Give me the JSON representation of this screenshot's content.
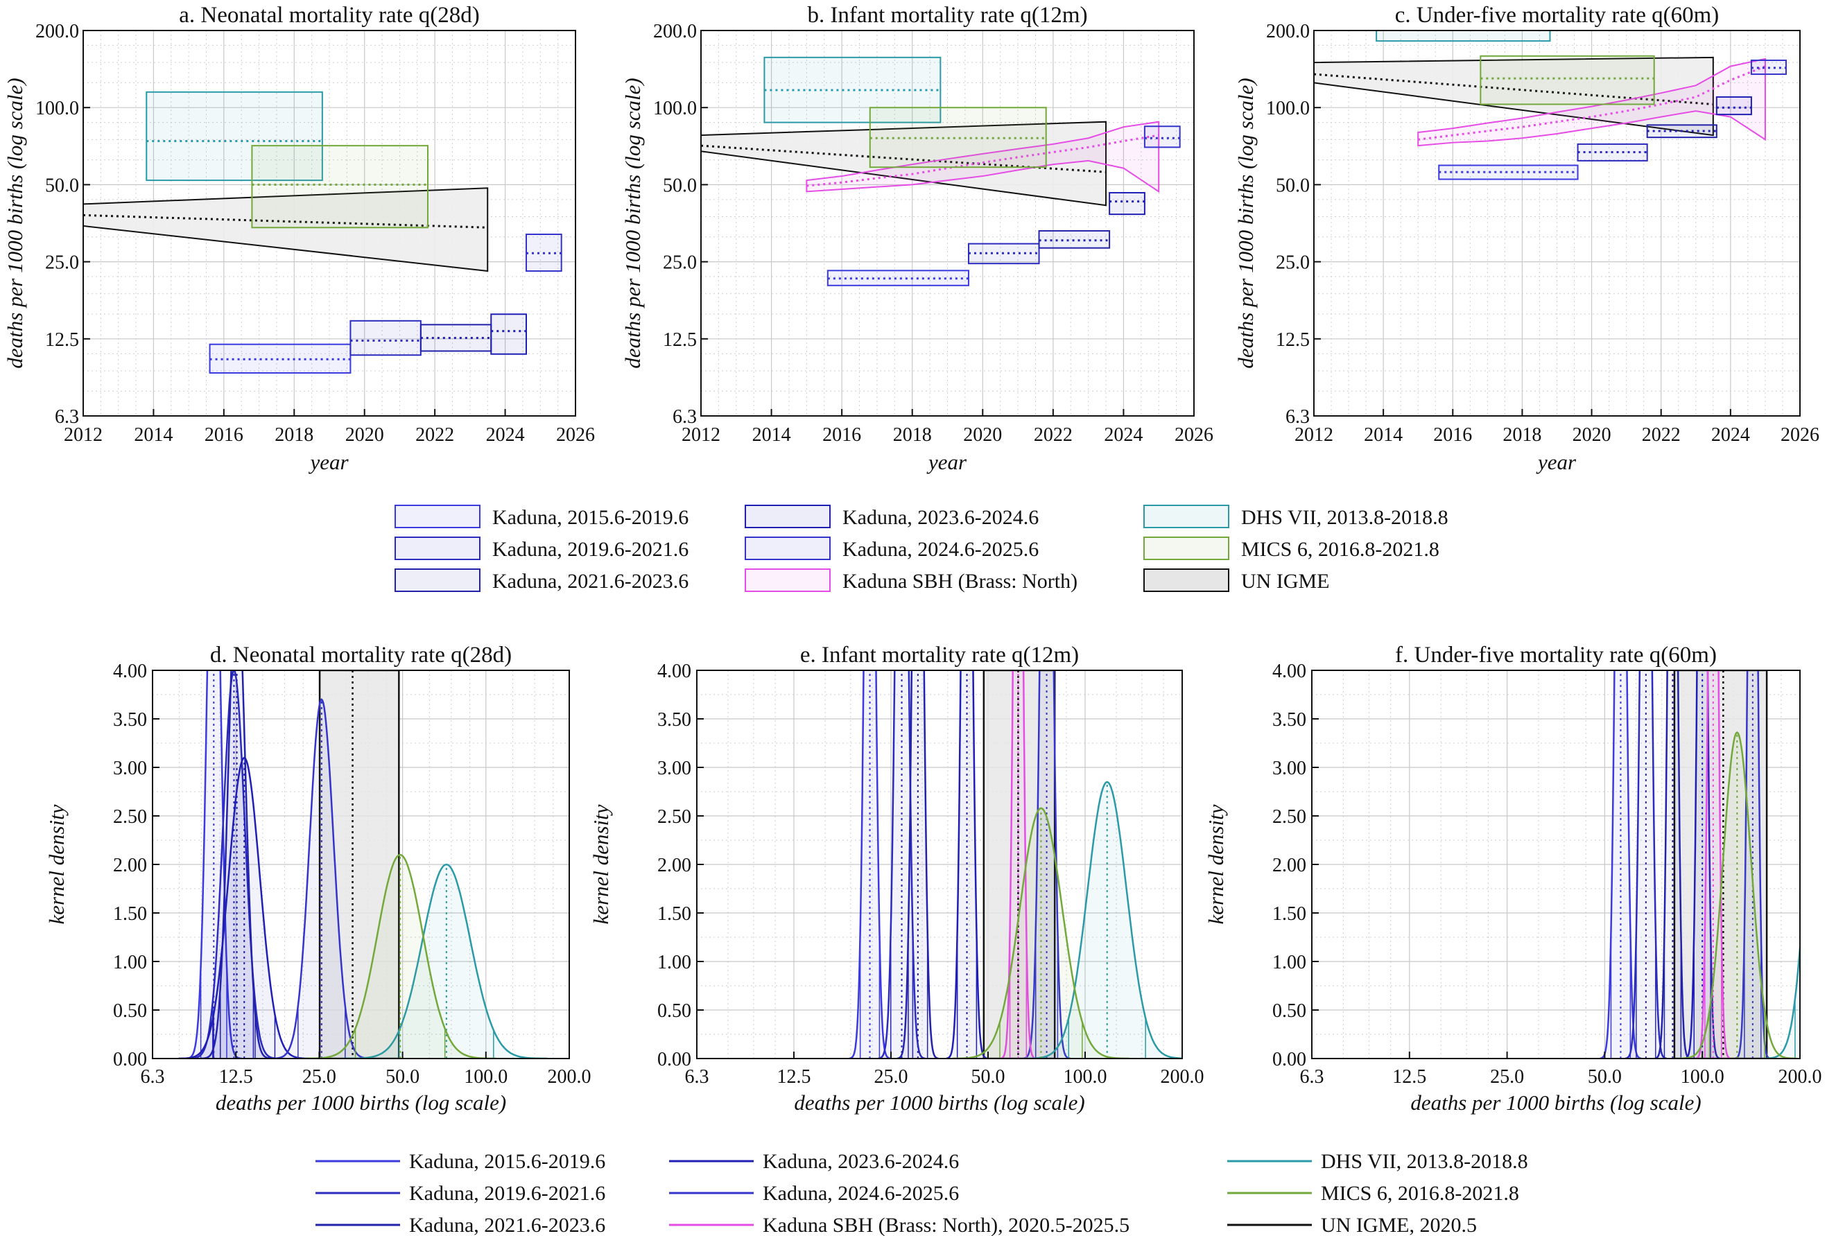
{
  "chart_data": [
    {
      "type": "area",
      "title": "a. Neonatal mortality rate q(28d)",
      "xlabel": "year",
      "ylabel": "deaths per 1000 births (log scale)",
      "xlim": [
        2012,
        2026
      ],
      "ylim": [
        6.25,
        200
      ],
      "yscale": "log",
      "grid": true,
      "x_ticks": [
        "2012",
        "2014",
        "2016",
        "2018",
        "2020",
        "2022",
        "2024",
        "2026"
      ],
      "y_ticks": [
        "6.3",
        "12.5",
        "25.0",
        "50.0",
        "100.0",
        "200.0"
      ],
      "estimates": [
        {
          "name": "Kaduna, 2015.6-2019.6",
          "x0": 2015.6,
          "x1": 2019.6,
          "y": 10.4,
          "lo": 9.2,
          "hi": 11.9
        },
        {
          "name": "Kaduna, 2019.6-2021.6",
          "x0": 2019.6,
          "x1": 2021.6,
          "y": 12.3,
          "lo": 10.8,
          "hi": 14.7
        },
        {
          "name": "Kaduna, 2021.6-2023.6",
          "x0": 2021.6,
          "x1": 2023.6,
          "y": 12.6,
          "lo": 11.2,
          "hi": 14.2
        },
        {
          "name": "Kaduna, 2023.6-2024.6",
          "x0": 2023.6,
          "x1": 2024.6,
          "y": 13.4,
          "lo": 10.9,
          "hi": 15.6
        },
        {
          "name": "Kaduna, 2024.6-2025.6",
          "x0": 2024.6,
          "x1": 2025.6,
          "y": 27,
          "lo": 23,
          "hi": 32
        },
        {
          "name": "DHS VII, 2013.8-2018.8",
          "x0": 2013.8,
          "x1": 2018.8,
          "y": 74,
          "lo": 52,
          "hi": 115
        },
        {
          "name": "MICS 6, 2016.8-2021.8",
          "x0": 2016.8,
          "x1": 2021.8,
          "y": 50,
          "lo": 34,
          "hi": 71
        }
      ],
      "unigme": {
        "x": [
          2012,
          2023.5
        ],
        "mid": [
          38,
          34
        ],
        "lo": [
          34.5,
          23
        ],
        "hi": [
          42,
          48.5
        ]
      }
    },
    {
      "type": "area",
      "title": "b. Infant mortality rate q(12m)",
      "xlabel": "year",
      "ylabel": "deaths per 1000 births (log scale)",
      "xlim": [
        2012,
        2026
      ],
      "ylim": [
        6.25,
        200
      ],
      "yscale": "log",
      "grid": true,
      "x_ticks": [
        "2012",
        "2014",
        "2016",
        "2018",
        "2020",
        "2022",
        "2024",
        "2026"
      ],
      "y_ticks": [
        "6.3",
        "12.5",
        "25.0",
        "50.0",
        "100.0",
        "200.0"
      ],
      "estimates": [
        {
          "name": "Kaduna, 2015.6-2019.6",
          "x0": 2015.6,
          "x1": 2019.6,
          "y": 21.5,
          "lo": 20.2,
          "hi": 23.1
        },
        {
          "name": "Kaduna, 2019.6-2021.6",
          "x0": 2019.6,
          "x1": 2021.6,
          "y": 27,
          "lo": 24.6,
          "hi": 29.4
        },
        {
          "name": "Kaduna, 2021.6-2023.6",
          "x0": 2021.6,
          "x1": 2023.6,
          "y": 30.3,
          "lo": 28.3,
          "hi": 33
        },
        {
          "name": "Kaduna, 2023.6-2024.6",
          "x0": 2023.6,
          "x1": 2024.6,
          "y": 43,
          "lo": 38.3,
          "hi": 46.5
        },
        {
          "name": "Kaduna, 2024.6-2025.6",
          "x0": 2024.6,
          "x1": 2025.6,
          "y": 76,
          "lo": 70,
          "hi": 84.5
        },
        {
          "name": "DHS VII, 2013.8-2018.8",
          "x0": 2013.8,
          "x1": 2018.8,
          "y": 117,
          "lo": 87.5,
          "hi": 157
        },
        {
          "name": "MICS 6, 2016.8-2021.8",
          "x0": 2016.8,
          "x1": 2021.8,
          "y": 76,
          "lo": 58.5,
          "hi": 100
        }
      ],
      "sbh": {
        "x": [
          2015,
          2016,
          2017,
          2018,
          2019,
          2020,
          2021,
          2022,
          2023,
          2024,
          2025
        ],
        "mid": [
          49.5,
          51,
          53,
          55,
          58,
          61,
          64,
          67,
          70,
          74,
          78
        ],
        "lo": [
          47,
          48,
          49,
          50,
          52,
          54,
          57,
          60,
          62,
          58,
          47
        ],
        "hi": [
          52,
          54,
          57,
          60,
          63,
          66,
          69,
          72,
          76,
          84,
          88
        ]
      },
      "unigme": {
        "x": [
          2012,
          2023.5
        ],
        "mid": [
          71,
          56
        ],
        "lo": [
          67.5,
          41.5
        ],
        "hi": [
          78,
          88
        ]
      }
    },
    {
      "type": "area",
      "title": "c. Under-five mortality rate q(60m)",
      "xlabel": "year",
      "ylabel": "deaths per 1000 births (log scale)",
      "xlim": [
        2012,
        2026
      ],
      "ylim": [
        6.25,
        200
      ],
      "yscale": "log",
      "grid": true,
      "x_ticks": [
        "2012",
        "2014",
        "2016",
        "2018",
        "2020",
        "2022",
        "2024",
        "2026"
      ],
      "y_ticks": [
        "6.3",
        "12.5",
        "25.0",
        "50.0",
        "100.0",
        "200.0"
      ],
      "estimates": [
        {
          "name": "Kaduna, 2015.6-2019.6",
          "x0": 2015.6,
          "x1": 2019.6,
          "y": 56,
          "lo": 52.5,
          "hi": 59.5
        },
        {
          "name": "Kaduna, 2019.6-2021.6",
          "x0": 2019.6,
          "x1": 2021.6,
          "y": 67,
          "lo": 62,
          "hi": 72
        },
        {
          "name": "Kaduna, 2021.6-2023.6",
          "x0": 2021.6,
          "x1": 2023.6,
          "y": 81,
          "lo": 76.5,
          "hi": 85.5
        },
        {
          "name": "Kaduna, 2023.6-2024.6",
          "x0": 2023.6,
          "x1": 2024.6,
          "y": 100,
          "lo": 94,
          "hi": 110
        },
        {
          "name": "Kaduna, 2024.6-2025.6",
          "x0": 2024.6,
          "x1": 2025.6,
          "y": 143,
          "lo": 135,
          "hi": 153
        },
        {
          "name": "DHS VII, 2013.8-2018.8",
          "x0": 2013.8,
          "x1": 2018.8,
          "y": 230,
          "lo": 182,
          "hi": 290
        },
        {
          "name": "MICS 6, 2016.8-2021.8",
          "x0": 2016.8,
          "x1": 2021.8,
          "y": 130,
          "lo": 103,
          "hi": 159
        }
      ],
      "sbh": {
        "x": [
          2015,
          2016,
          2017,
          2018,
          2019,
          2020,
          2021,
          2022,
          2023,
          2024,
          2025
        ],
        "mid": [
          75,
          78,
          81,
          84,
          88,
          92,
          97,
          103,
          110,
          128,
          145
        ],
        "lo": [
          71,
          73,
          74,
          76,
          79,
          83,
          87,
          92,
          97,
          92,
          75
        ],
        "hi": [
          80,
          83,
          87,
          91,
          96,
          101,
          107,
          114,
          122,
          145,
          155
        ]
      },
      "unigme": {
        "x": [
          2012,
          2023.5
        ],
        "mid": [
          135,
          103
        ],
        "lo": [
          125,
          78
        ],
        "hi": [
          150,
          157
        ]
      }
    },
    {
      "type": "area",
      "title": "d. Neonatal mortality rate q(28d)",
      "xlabel": "deaths per 1000 births (log scale)",
      "ylabel": "kernel density",
      "xlim": [
        6.25,
        200
      ],
      "xscale": "log",
      "ylim": [
        0,
        4
      ],
      "grid": true,
      "x_ticks": [
        "6.3",
        "12.5",
        "25.0",
        "50.0",
        "100.0",
        "200.0"
      ],
      "y_ticks": [
        "0.00",
        "0.50",
        "1.00",
        "1.50",
        "2.00",
        "2.50",
        "3.00",
        "3.50",
        "4.00"
      ],
      "densities": [
        {
          "name": "Kaduna, 2015.6-2019.6",
          "mu": 10.4,
          "sigma": 0.055,
          "peak": 6.5
        },
        {
          "name": "Kaduna, 2019.6-2021.6",
          "mu": 12.3,
          "sigma": 0.09,
          "peak": 4.0
        },
        {
          "name": "Kaduna, 2021.6-2023.6",
          "mu": 12.6,
          "sigma": 0.07,
          "peak": 5.0
        },
        {
          "name": "Kaduna, 2023.6-2024.6",
          "mu": 13.4,
          "sigma": 0.13,
          "peak": 3.1
        },
        {
          "name": "Kaduna, 2024.6-2025.6",
          "mu": 25.5,
          "sigma": 0.1,
          "peak": 3.7
        },
        {
          "name": "DHS VII, 2013.8-2018.8",
          "mu": 72,
          "sigma": 0.2,
          "peak": 2.0
        },
        {
          "name": "MICS 6, 2016.8-2021.8",
          "mu": 49,
          "sigma": 0.19,
          "peak": 2.1
        }
      ],
      "unigme_band": [
        25.1,
        48.5
      ],
      "unigme_mid": 33
    },
    {
      "type": "area",
      "title": "e. Infant mortality rate q(12m)",
      "xlabel": "deaths per 1000 births (log scale)",
      "ylabel": "kernel density",
      "xlim": [
        6.25,
        200
      ],
      "xscale": "log",
      "ylim": [
        0,
        4
      ],
      "grid": true,
      "x_ticks": [
        "6.3",
        "12.5",
        "25.0",
        "50.0",
        "100.0",
        "200.0"
      ],
      "y_ticks": [
        "0.00",
        "0.50",
        "1.00",
        "1.50",
        "2.00",
        "2.50",
        "3.00",
        "3.50",
        "4.00"
      ],
      "densities": [
        {
          "name": "Kaduna, 2015.6-2019.6",
          "mu": 21.5,
          "sigma": 0.035,
          "peak": 9
        },
        {
          "name": "Kaduna, 2019.6-2021.6",
          "mu": 27,
          "sigma": 0.04,
          "peak": 9
        },
        {
          "name": "Kaduna, 2021.6-2023.6",
          "mu": 30.3,
          "sigma": 0.035,
          "peak": 9
        },
        {
          "name": "Kaduna, 2023.6-2024.6",
          "mu": 43,
          "sigma": 0.035,
          "peak": 9
        },
        {
          "name": "Kaduna, 2024.6-2025.6",
          "mu": 76,
          "sigma": 0.04,
          "peak": 9
        },
        {
          "name": "Kaduna SBH (Brass: North), 2020.5-2025.5",
          "mu": 62,
          "sigma": 0.03,
          "peak": 9
        },
        {
          "name": "DHS VII, 2013.8-2018.8",
          "mu": 117,
          "sigma": 0.14,
          "peak": 2.85
        },
        {
          "name": "MICS 6, 2016.8-2021.8",
          "mu": 73,
          "sigma": 0.15,
          "peak": 2.58
        }
      ],
      "unigme_band": [
        48.5,
        80.5
      ],
      "unigme_mid": 62
    },
    {
      "type": "area",
      "title": "f. Under-five mortality rate q(60m)",
      "xlabel": "deaths per 1000 births (log scale)",
      "ylabel": "kernel density",
      "xlim": [
        6.25,
        200
      ],
      "xscale": "log",
      "ylim": [
        0,
        4
      ],
      "grid": true,
      "x_ticks": [
        "6.3",
        "12.5",
        "25.0",
        "50.0",
        "100.0",
        "200.0"
      ],
      "y_ticks": [
        "0.00",
        "0.50",
        "1.00",
        "1.50",
        "2.00",
        "2.50",
        "3.00",
        "3.50",
        "4.00"
      ],
      "densities": [
        {
          "name": "Kaduna, 2015.6-2019.6",
          "mu": 56,
          "sigma": 0.035,
          "peak": 9
        },
        {
          "name": "Kaduna, 2019.6-2021.6",
          "mu": 67,
          "sigma": 0.035,
          "peak": 9
        },
        {
          "name": "Kaduna, 2021.6-2023.6",
          "mu": 81,
          "sigma": 0.03,
          "peak": 9
        },
        {
          "name": "Kaduna, 2023.6-2024.6",
          "mu": 100,
          "sigma": 0.03,
          "peak": 9
        },
        {
          "name": "Kaduna, 2024.6-2025.6",
          "mu": 143,
          "sigma": 0.03,
          "peak": 9
        },
        {
          "name": "Kaduna SBH (Brass: North), 2020.5-2025.5",
          "mu": 108,
          "sigma": 0.03,
          "peak": 9
        },
        {
          "name": "DHS VII, 2013.8-2018.8",
          "mu": 235,
          "sigma": 0.1,
          "peak": 4.2
        },
        {
          "name": "MICS 6, 2016.8-2021.8",
          "mu": 128,
          "sigma": 0.1,
          "peak": 3.36
        }
      ],
      "unigme_band": [
        82,
        158
      ],
      "unigme_mid": 116
    }
  ],
  "legend_top": [
    "Kaduna, 2015.6-2019.6",
    "Kaduna, 2019.6-2021.6",
    "Kaduna, 2021.6-2023.6",
    "Kaduna, 2023.6-2024.6",
    "Kaduna, 2024.6-2025.6",
    "Kaduna SBH (Brass: North)",
    "DHS VII, 2013.8-2018.8",
    "MICS 6, 2016.8-2021.8",
    "UN IGME"
  ],
  "legend_bottom": [
    "Kaduna, 2015.6-2019.6",
    "Kaduna, 2019.6-2021.6",
    "Kaduna, 2021.6-2023.6",
    "Kaduna, 2023.6-2024.6",
    "Kaduna, 2024.6-2025.6",
    "Kaduna SBH (Brass: North), 2020.5-2025.5",
    "DHS VII, 2013.8-2018.8",
    "MICS 6, 2016.8-2021.8",
    "UN IGME, 2020.5"
  ],
  "colors": {
    "kaduna": [
      "#3a3adf",
      "#2b2bbf",
      "#2222aa",
      "#1f1fb5",
      "#3434cc"
    ],
    "sbh": "#e64ce6",
    "dhs": "#2a9aa8",
    "mics": "#72a93a",
    "unigme": "#111111"
  }
}
